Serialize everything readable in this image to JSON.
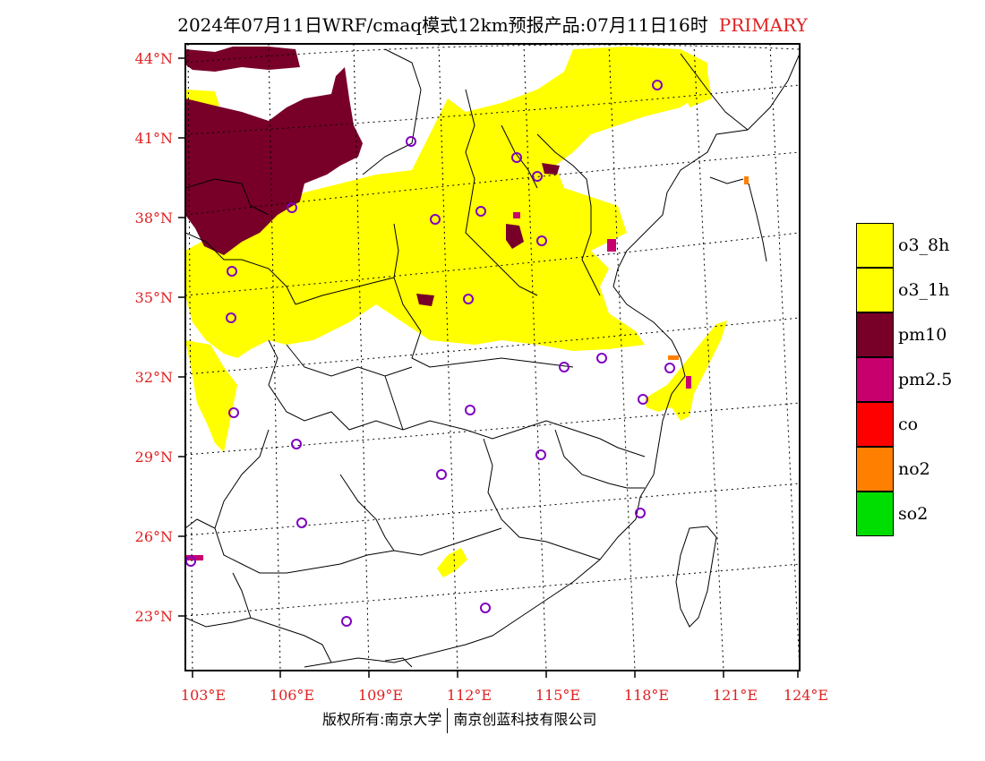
{
  "header": {
    "title": "2024年07月11日WRF/cmaq模式12km预报产品:07月11日16时",
    "badge": "PRIMARY"
  },
  "axes": {
    "lat_labels": [
      "44°N",
      "41°N",
      "38°N",
      "35°N",
      "32°N",
      "29°N",
      "26°N",
      "23°N"
    ],
    "lon_labels": [
      "103°E",
      "106°E",
      "109°E",
      "112°E",
      "115°E",
      "118°E",
      "121°E",
      "124°E"
    ]
  },
  "legend": {
    "items": [
      {
        "label": "o3_8h",
        "color": "#ffff00"
      },
      {
        "label": "o3_1h",
        "color": "#ffff00"
      },
      {
        "label": "pm10",
        "color": "#780028"
      },
      {
        "label": "pm2.5",
        "color": "#c8006e"
      },
      {
        "label": "co",
        "color": "#ff0000"
      },
      {
        "label": "no2",
        "color": "#ff7f00"
      },
      {
        "label": "so2",
        "color": "#00dd00"
      }
    ]
  },
  "footer": {
    "copyright": "版权所有:南京大学",
    "company": "南京创蓝科技有限公司"
  },
  "colors": {
    "o3": "#ffff00",
    "pm10": "#780028",
    "pm25": "#c8006e",
    "no2": "#ff7f00",
    "station": "#8000c0",
    "label": "#e02020"
  }
}
